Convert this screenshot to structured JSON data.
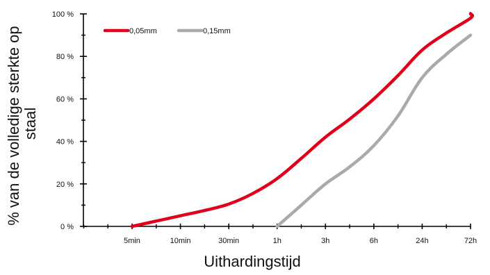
{
  "chart_data": {
    "type": "line",
    "title": "",
    "xlabel": "Uithardingstijd",
    "ylabel": "% van de volledige sterkte op staal",
    "ylabel_lines": [
      "% van de volledige sterkte op",
      "staal"
    ],
    "categories": [
      "5min",
      "10min",
      "30min",
      "1h",
      "3h",
      "6h",
      "24h",
      "72h"
    ],
    "y_ticks": [
      "0 %",
      "20 %",
      "40 %",
      "60 %",
      "80 %",
      "100 %"
    ],
    "ylim": [
      0,
      100
    ],
    "legend_position": "top-left",
    "grid": false,
    "series": [
      {
        "name": "0,05mm",
        "color": "#e0001b",
        "x": [
          0,
          0.5,
          1,
          1.5,
          2,
          2.5,
          3,
          3.5,
          4,
          4.5,
          5,
          5.5,
          6,
          6.5,
          7,
          7.5,
          8
        ],
        "values": [
          0,
          2.5,
          5,
          7.5,
          10.5,
          15.5,
          22.5,
          32,
          42,
          50.5,
          60,
          71,
          83,
          91,
          98,
          100,
          100
        ]
      },
      {
        "name": "0,15mm",
        "color": "#aaaaaa",
        "x": [
          3,
          3.5,
          4,
          4.5,
          5,
          5.5,
          6,
          6.5,
          7
        ],
        "values": [
          0,
          10,
          20,
          28,
          38,
          52,
          70,
          81,
          90
        ]
      }
    ]
  }
}
